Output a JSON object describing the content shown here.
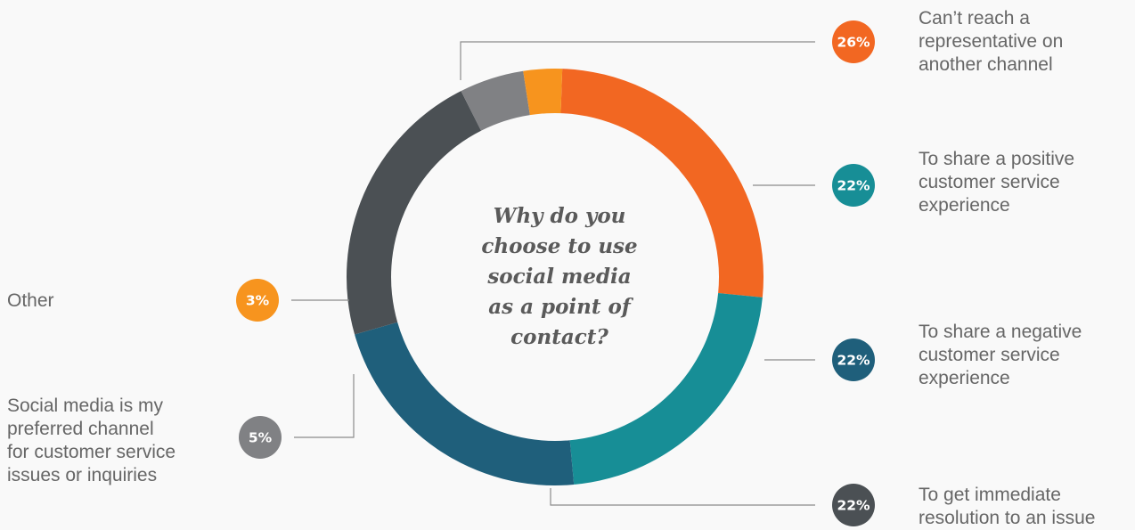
{
  "chart_data": {
    "type": "pie",
    "style": "donut",
    "title": "Why do you\nchoose to use\nsocial media\nas a point of\ncontact?",
    "slices": [
      {
        "label": "Can’t reach a\nrepresentative on\nanother channel",
        "value": 26,
        "value_label": "26%",
        "color": "#f26722"
      },
      {
        "label": "To share a positive\ncustomer service\nexperience",
        "value": 22,
        "value_label": "22%",
        "color": "#178e96"
      },
      {
        "label": "To share a negative\ncustomer service\nexperience",
        "value": 22,
        "value_label": "22%",
        "color": "#1f5f7b"
      },
      {
        "label": "To get immediate\nresolution to an issue",
        "value": 22,
        "value_label": "22%",
        "color": "#4b5054"
      },
      {
        "label": "Social media is my\npreferred channel\nfor customer service\nissues or inquiries",
        "value": 5,
        "value_label": "5%",
        "color": "#808184"
      },
      {
        "label": "Other",
        "value": 3,
        "value_label": "3%",
        "color": "#f7941e"
      }
    ],
    "background": "#f9f9f9",
    "connector_color": "#8c8c8c",
    "label_color": "#666666"
  }
}
